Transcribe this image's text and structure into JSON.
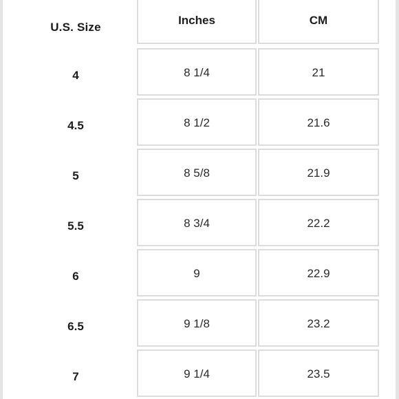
{
  "headers": {
    "size": "U.S. Size",
    "inches": "Inches",
    "cm": "CM"
  },
  "rows": [
    {
      "size": "4",
      "inches": "8 1/4",
      "cm": "21"
    },
    {
      "size": "4.5",
      "inches": "8 1/2",
      "cm": "21.6"
    },
    {
      "size": "5",
      "inches": "8 5/8",
      "cm": "21.9"
    },
    {
      "size": "5.5",
      "inches": "8 3/4",
      "cm": "22.2"
    },
    {
      "size": "6",
      "inches": "9",
      "cm": "22.9"
    },
    {
      "size": "6.5",
      "inches": "9 1/8",
      "cm": "23.2"
    },
    {
      "size": "7",
      "inches": "9 1/4",
      "cm": "23.5"
    }
  ],
  "colors": {
    "cell_border": "#dcdcdc",
    "side_edge": "#e4e4e4",
    "text": "#1c1c1c"
  }
}
